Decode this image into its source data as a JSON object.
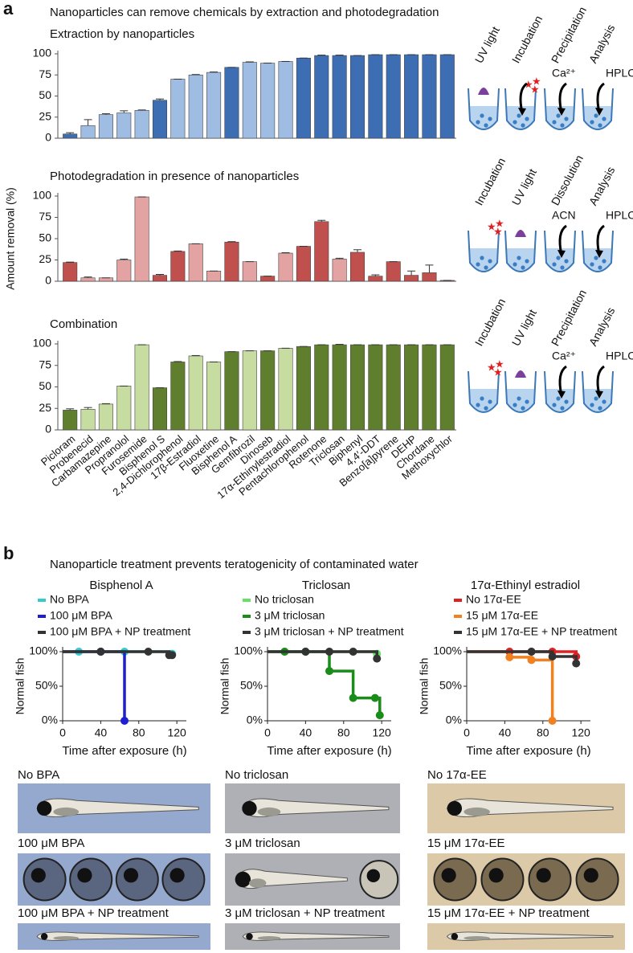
{
  "figure": {
    "panel_a_label": "a",
    "panel_a_title": "Nanoparticles can remove chemicals by extraction and photodegradation",
    "panel_b_label": "b",
    "panel_b_title": "Nanoparticle treatment prevents teratogenicity of contaminated water",
    "protocols": [
      {
        "steps": [
          "UV light",
          "Incubation",
          "Precipitation",
          "Analysis"
        ],
        "reagents": [
          "Ca²⁺",
          "HPLC"
        ]
      },
      {
        "steps": [
          "Incubation",
          "UV light",
          "Dissolution",
          "Analysis"
        ],
        "reagents": [
          "ACN",
          "HPLC"
        ]
      },
      {
        "steps": [
          "Incubation",
          "UV light",
          "Precipitation",
          "Analysis"
        ],
        "reagents": [
          "Ca²⁺",
          "HPLC"
        ]
      }
    ],
    "images": [
      [
        "No BPA",
        "100 μM BPA",
        "100 μM BPA + NP treatment"
      ],
      [
        "No triclosan",
        "3 μM triclosan",
        "3 μM triclosan + NP treatment"
      ],
      [
        "No 17α-EE",
        "15 μM 17α-EE",
        "15 μM 17α-EE + NP treatment"
      ]
    ]
  },
  "chart_data": [
    {
      "type": "bar",
      "title": "Extraction by nanoparticles",
      "values": [
        5,
        15,
        28,
        30,
        33,
        45,
        70,
        75,
        78,
        84,
        90,
        89,
        91,
        95,
        98,
        98,
        98,
        99,
        99,
        99,
        99,
        99
      ],
      "errors": [
        1.5,
        7,
        1,
        2.5,
        0.5,
        1.5,
        0,
        0.5,
        0.5,
        0,
        0.5,
        0,
        0,
        0,
        0.5,
        0.5,
        0,
        0,
        0,
        0,
        0,
        0
      ],
      "colors": [
        "#3d6eb4",
        "#9fbde2",
        "#9fbde2",
        "#9fbde2",
        "#9fbde2",
        "#3d6eb4",
        "#9fbde2",
        "#9fbde2",
        "#9fbde2",
        "#3d6eb4",
        "#9fbde2",
        "#9fbde2",
        "#9fbde2",
        "#3d6eb4",
        "#3d6eb4",
        "#3d6eb4",
        "#3d6eb4",
        "#3d6eb4",
        "#3d6eb4",
        "#3d6eb4",
        "#3d6eb4",
        "#3d6eb4"
      ],
      "ylim": [
        0,
        100
      ],
      "yticks": [
        0,
        25,
        50,
        75,
        100
      ]
    },
    {
      "type": "bar",
      "title": "Photodegradation in presence of nanoparticles",
      "ylabel": "Amount removal (%)",
      "values": [
        22,
        4,
        4,
        25,
        99,
        7,
        35,
        44,
        12,
        46,
        23,
        6,
        33,
        41,
        70,
        26,
        34,
        6,
        23,
        7,
        10,
        1
      ],
      "errors": [
        0.5,
        1,
        0,
        1,
        0,
        1,
        0.5,
        0,
        0,
        0.5,
        0,
        0,
        0.5,
        0,
        1.5,
        1,
        3,
        1.5,
        0,
        5,
        9,
        0
      ],
      "colors": [
        "#c0504d",
        "#e3a3a3",
        "#e3a3a3",
        "#e3a3a3",
        "#e3a3a3",
        "#c0504d",
        "#c0504d",
        "#e3a3a3",
        "#e3a3a3",
        "#c0504d",
        "#e3a3a3",
        "#c0504d",
        "#e3a3a3",
        "#c0504d",
        "#c0504d",
        "#e3a3a3",
        "#c0504d",
        "#c0504d",
        "#c0504d",
        "#c0504d",
        "#c0504d",
        "#c0504d"
      ],
      "ylim": [
        0,
        100
      ],
      "yticks": [
        0,
        25,
        50,
        75,
        100
      ]
    },
    {
      "type": "bar",
      "title": "Combination",
      "categories": [
        "Picloram",
        "Probenecid",
        "Carbamazepine",
        "Propranolol",
        "Furosemide",
        "Bisphenol S",
        "2,4-Dichlorophenol",
        "17β-Estradiol",
        "Fluoxetine",
        "Bisphenol A",
        "Gemfibrozil",
        "Dinoseb",
        "17α-Ethinylestradiol",
        "Pentachlorophenol",
        "Rotenone",
        "Triclosan",
        "Biphenyl",
        "4,4′-DDT",
        "Benzo[a]pyrene",
        "DEHP",
        "Chordane",
        "Methoxychlor"
      ],
      "values": [
        23,
        24,
        30,
        51,
        99,
        49,
        79,
        86,
        79,
        91,
        92,
        92,
        95,
        97,
        99,
        99,
        99,
        99,
        99,
        99,
        99,
        99
      ],
      "errors": [
        1.5,
        2,
        0.5,
        0,
        0,
        0,
        0.5,
        0.5,
        0,
        0,
        0,
        0,
        0,
        0,
        0,
        0.5,
        0,
        0,
        0,
        0,
        0,
        0
      ],
      "colors": [
        "#5f7f2e",
        "#c6dca1",
        "#c6dca1",
        "#c6dca1",
        "#c6dca1",
        "#5f7f2e",
        "#5f7f2e",
        "#c6dca1",
        "#c6dca1",
        "#5f7f2e",
        "#c6dca1",
        "#5f7f2e",
        "#c6dca1",
        "#5f7f2e",
        "#5f7f2e",
        "#5f7f2e",
        "#5f7f2e",
        "#5f7f2e",
        "#5f7f2e",
        "#5f7f2e",
        "#5f7f2e",
        "#5f7f2e"
      ],
      "ylim": [
        0,
        100
      ],
      "yticks": [
        0,
        25,
        50,
        75,
        100
      ]
    },
    {
      "type": "line",
      "step": true,
      "title": "Bisphenol A",
      "xlabel": "Time after exposure (h)",
      "ylabel": "Normal fish",
      "series": [
        {
          "name": "No BPA",
          "color": "#33cccc",
          "x": [
            0,
            17,
            40,
            65,
            115
          ],
          "values": [
            100,
            100,
            100,
            100,
            97
          ]
        },
        {
          "name": "100 μM BPA",
          "color": "#1f1fd1",
          "x": [
            0,
            40,
            65
          ],
          "values": [
            100,
            100,
            0
          ]
        },
        {
          "name": "100 μM BPA + NP treatment",
          "color": "#333333",
          "x": [
            0,
            40,
            90,
            112,
            115
          ],
          "values": [
            100,
            100,
            100,
            95,
            95
          ]
        }
      ],
      "xlim": [
        0,
        130
      ],
      "xticks": [
        0,
        40,
        80,
        120
      ],
      "ylim": [
        0,
        100
      ],
      "yticks": [
        {
          "value": 0,
          "label": "0%"
        },
        {
          "value": 50,
          "label": "50%"
        },
        {
          "value": 100,
          "label": "100%"
        }
      ]
    },
    {
      "type": "line",
      "step": true,
      "title": "Triclosan",
      "xlabel": "Time after exposure (h)",
      "ylabel": "Normal fish",
      "series": [
        {
          "name": "No triclosan",
          "color": "#66e066",
          "x": [
            0,
            18,
            40,
            65,
            90,
            115
          ],
          "values": [
            100,
            100,
            100,
            100,
            100,
            97
          ]
        },
        {
          "name": "3 μM triclosan",
          "color": "#1a8c1a",
          "x": [
            0,
            18,
            40,
            65,
            90,
            113,
            118
          ],
          "values": [
            100,
            100,
            100,
            72,
            33,
            33,
            8
          ]
        },
        {
          "name": "3 μM triclosan + NP treatment",
          "color": "#333333",
          "x": [
            0,
            40,
            65,
            90,
            115
          ],
          "values": [
            100,
            100,
            100,
            100,
            90
          ]
        }
      ],
      "xlim": [
        0,
        130
      ],
      "xticks": [
        0,
        40,
        80,
        120
      ],
      "ylim": [
        0,
        100
      ],
      "yticks": [
        {
          "value": 0,
          "label": "0%"
        },
        {
          "value": 50,
          "label": "50%"
        },
        {
          "value": 100,
          "label": "100%"
        }
      ]
    },
    {
      "type": "line",
      "step": true,
      "title": "17α-Ethinyl estradiol",
      "xlabel": "Time after exposure (h)",
      "ylabel": "Normal fish",
      "series": [
        {
          "name": "No 17α-EE",
          "color": "#e02020",
          "x": [
            0,
            45,
            68,
            90,
            115
          ],
          "values": [
            100,
            100,
            100,
            100,
            93
          ]
        },
        {
          "name": "15 μM 17α-EE",
          "color": "#f08020",
          "x": [
            0,
            45,
            68,
            90
          ],
          "values": [
            100,
            92,
            88,
            0
          ]
        },
        {
          "name": "15 μM 17α-EE + NP treatment",
          "color": "#333333",
          "x": [
            0,
            68,
            90,
            115
          ],
          "values": [
            100,
            100,
            93,
            83
          ]
        }
      ],
      "xlim": [
        0,
        130
      ],
      "xticks": [
        0,
        40,
        80,
        120
      ],
      "ylim": [
        0,
        100
      ],
      "yticks": [
        {
          "value": 0,
          "label": "0%"
        },
        {
          "value": 50,
          "label": "50%"
        },
        {
          "value": 100,
          "label": "100%"
        }
      ]
    }
  ]
}
